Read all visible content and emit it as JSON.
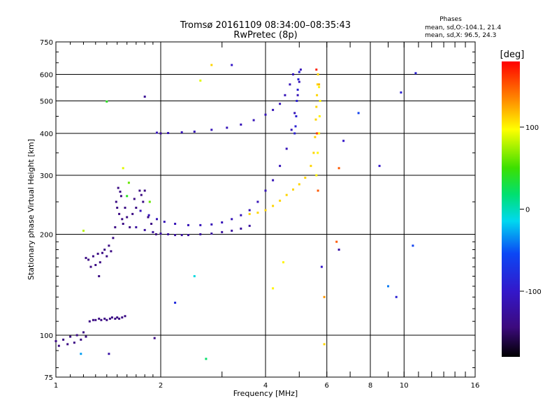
{
  "chart_data": {
    "type": "scatter",
    "title": "Tromsø 20161109 08:34:00–08:35:43",
    "subtitle": "RwPretec (8p)",
    "xlabel": "Frequency [MHz]",
    "ylabel": "Stationary phase Virtual Height [km]",
    "x_scale": "log",
    "y_scale": "log",
    "xlim": [
      1,
      16
    ],
    "ylim": [
      75,
      750
    ],
    "grid": true,
    "x_ticks": [
      1,
      2,
      4,
      6,
      8,
      10,
      16
    ],
    "x_tick_labels": [
      "1",
      "2",
      "4",
      "6",
      "8",
      "10",
      "16"
    ],
    "y_ticks": [
      75,
      100,
      200,
      300,
      400,
      500,
      600,
      750
    ],
    "y_tick_labels": [
      "75",
      "100",
      "200",
      "300",
      "400",
      "500",
      "600",
      "750"
    ],
    "phase_stats": {
      "heading": "Phases",
      "o_line": "mean, sd,O:-104.1, 21.4",
      "x_line": "mean, sd,X: 96.5, 24.3"
    },
    "colorbar": {
      "label": "[deg]",
      "range": [
        -180,
        180
      ],
      "ticks": [
        100,
        0,
        -100
      ],
      "tick_labels": [
        "100",
        "0",
        "-100"
      ]
    },
    "series": [
      {
        "points": [
          [
            1.0,
            96,
            -140
          ],
          [
            1.02,
            93,
            -140
          ],
          [
            1.05,
            97,
            -140
          ],
          [
            1.08,
            94,
            -140
          ],
          [
            1.1,
            99,
            -140
          ],
          [
            1.13,
            95,
            -140
          ],
          [
            1.15,
            100,
            -140
          ],
          [
            1.18,
            97,
            -140
          ],
          [
            1.2,
            102,
            -140
          ],
          [
            1.22,
            99,
            -140
          ],
          [
            1.25,
            110,
            -140
          ],
          [
            1.28,
            111,
            -140
          ],
          [
            1.3,
            111,
            -140
          ],
          [
            1.33,
            112,
            -140
          ],
          [
            1.35,
            111,
            -140
          ],
          [
            1.38,
            112,
            -140
          ],
          [
            1.4,
            111,
            -140
          ],
          [
            1.43,
            112,
            -140
          ],
          [
            1.45,
            113,
            -140
          ],
          [
            1.48,
            112,
            -140
          ],
          [
            1.5,
            113,
            -140
          ],
          [
            1.52,
            112,
            -140
          ],
          [
            1.55,
            113,
            -140
          ],
          [
            1.58,
            114,
            -140
          ],
          [
            1.22,
            170,
            -140
          ],
          [
            1.24,
            168,
            -140
          ],
          [
            1.26,
            160,
            -140
          ],
          [
            1.28,
            172,
            -140
          ],
          [
            1.3,
            162,
            -140
          ],
          [
            1.32,
            175,
            -140
          ],
          [
            1.33,
            150,
            -140
          ],
          [
            1.34,
            165,
            -140
          ],
          [
            1.36,
            176,
            -140
          ],
          [
            1.38,
            180,
            -140
          ],
          [
            1.4,
            172,
            -140
          ],
          [
            1.42,
            185,
            -140
          ],
          [
            1.44,
            178,
            -140
          ],
          [
            1.46,
            195,
            -140
          ],
          [
            1.48,
            210,
            -140
          ],
          [
            1.49,
            250,
            -140
          ],
          [
            1.5,
            240,
            -140
          ],
          [
            1.51,
            275,
            -140
          ],
          [
            1.52,
            230,
            -140
          ],
          [
            1.53,
            268,
            -140
          ],
          [
            1.54,
            260,
            -140
          ],
          [
            1.55,
            222,
            -140
          ],
          [
            1.56,
            215,
            -140
          ],
          [
            1.58,
            240,
            -140
          ],
          [
            1.6,
            225,
            -140
          ],
          [
            1.63,
            210,
            -140
          ],
          [
            1.66,
            230,
            -140
          ],
          [
            1.68,
            255,
            -140
          ],
          [
            1.7,
            240,
            -140
          ],
          [
            1.74,
            270,
            -140
          ],
          [
            1.76,
            262,
            -140
          ],
          [
            1.78,
            250,
            -140
          ],
          [
            1.8,
            270,
            -140
          ],
          [
            1.84,
            225,
            -140
          ],
          [
            1.88,
            215,
            -140
          ],
          [
            1.94,
            200,
            -140
          ],
          [
            1.7,
            210,
            -125
          ],
          [
            1.8,
            206,
            -125
          ],
          [
            1.9,
            203,
            -125
          ],
          [
            2.0,
            201,
            -125
          ],
          [
            2.1,
            200,
            -125
          ],
          [
            2.2,
            199,
            -125
          ],
          [
            2.3,
            199,
            -125
          ],
          [
            2.4,
            199,
            -125
          ],
          [
            2.6,
            200,
            -125
          ],
          [
            2.8,
            201,
            -125
          ],
          [
            3.0,
            203,
            -125
          ],
          [
            3.2,
            205,
            -125
          ],
          [
            3.4,
            208,
            -125
          ],
          [
            3.6,
            212,
            -125
          ],
          [
            1.75,
            235,
            -110
          ],
          [
            1.85,
            228,
            -110
          ],
          [
            1.95,
            222,
            -110
          ],
          [
            2.05,
            218,
            -110
          ],
          [
            2.2,
            215,
            -110
          ],
          [
            2.4,
            213,
            -110
          ],
          [
            2.6,
            213,
            -110
          ],
          [
            2.8,
            214,
            -110
          ],
          [
            3.0,
            217,
            -110
          ],
          [
            3.2,
            222,
            -110
          ],
          [
            3.4,
            228,
            -110
          ],
          [
            3.6,
            236,
            -110
          ],
          [
            3.8,
            250,
            -110
          ],
          [
            4.0,
            270,
            -110
          ],
          [
            4.2,
            290,
            -110
          ],
          [
            4.4,
            320,
            -110
          ],
          [
            4.6,
            360,
            -110
          ],
          [
            4.75,
            410,
            -110
          ],
          [
            4.85,
            460,
            -110
          ],
          [
            4.95,
            520,
            -110
          ],
          [
            5.0,
            570,
            -110
          ],
          [
            5.05,
            620,
            -110
          ],
          [
            1.95,
            402,
            -110
          ],
          [
            2.1,
            401,
            -110
          ],
          [
            2.3,
            403,
            -110
          ],
          [
            2.5,
            405,
            -110
          ],
          [
            2.8,
            410,
            -110
          ],
          [
            3.1,
            416,
            -110
          ],
          [
            3.4,
            425,
            -110
          ],
          [
            3.7,
            438,
            -110
          ],
          [
            4.0,
            455,
            -110
          ],
          [
            4.2,
            470,
            -110
          ],
          [
            4.4,
            490,
            -110
          ],
          [
            4.55,
            520,
            -110
          ],
          [
            4.7,
            560,
            -110
          ],
          [
            4.8,
            600,
            -110
          ],
          [
            4.85,
            400,
            -90
          ],
          [
            4.88,
            420,
            -90
          ],
          [
            4.9,
            450,
            -90
          ],
          [
            4.92,
            500,
            -90
          ],
          [
            4.95,
            540,
            -90
          ],
          [
            4.97,
            580,
            -90
          ],
          [
            5.0,
            610,
            -90
          ],
          [
            3.6,
            230,
            110
          ],
          [
            3.8,
            232,
            110
          ],
          [
            4.0,
            236,
            110
          ],
          [
            4.2,
            243,
            110
          ],
          [
            4.4,
            252,
            110
          ],
          [
            4.6,
            262,
            110
          ],
          [
            4.8,
            272,
            110
          ],
          [
            5.0,
            282,
            110
          ],
          [
            5.2,
            295,
            110
          ],
          [
            5.4,
            320,
            110
          ],
          [
            5.5,
            350,
            110
          ],
          [
            5.55,
            390,
            110
          ],
          [
            5.58,
            440,
            110
          ],
          [
            5.6,
            480,
            110
          ],
          [
            5.62,
            520,
            110
          ],
          [
            5.64,
            560,
            110
          ],
          [
            5.66,
            600,
            110
          ],
          [
            5.6,
            300,
            100
          ],
          [
            5.65,
            350,
            100
          ],
          [
            5.7,
            400,
            100
          ],
          [
            5.72,
            450,
            100
          ],
          [
            5.74,
            500,
            100
          ],
          [
            5.7,
            550,
            100
          ],
          [
            5.6,
            620,
            170
          ],
          [
            5.62,
            400,
            160
          ],
          [
            5.66,
            270,
            150
          ],
          [
            5.7,
            560,
            120
          ],
          [
            1.2,
            205,
            80
          ],
          [
            1.4,
            498,
            40
          ],
          [
            2.8,
            640,
            110
          ],
          [
            3.2,
            640,
            -100
          ],
          [
            2.6,
            575,
            90
          ],
          [
            7.4,
            460,
            -60
          ],
          [
            8.5,
            320,
            -100
          ],
          [
            9.8,
            530,
            -90
          ],
          [
            10.8,
            605,
            -90
          ],
          [
            10.6,
            185,
            -60
          ],
          [
            9.0,
            140,
            -40
          ],
          [
            9.5,
            130,
            -90
          ],
          [
            6.5,
            315,
            150
          ],
          [
            6.5,
            180,
            -120
          ],
          [
            5.8,
            160,
            -100
          ],
          [
            5.9,
            130,
            130
          ],
          [
            4.2,
            138,
            100
          ],
          [
            4.5,
            165,
            100
          ],
          [
            2.5,
            150,
            -10
          ],
          [
            2.7,
            85,
            20
          ],
          [
            1.18,
            88,
            -30
          ],
          [
            1.42,
            88,
            -120
          ],
          [
            1.92,
            98,
            -140
          ],
          [
            2.2,
            125,
            -80
          ],
          [
            1.6,
            260,
            40
          ],
          [
            1.62,
            285,
            60
          ],
          [
            1.86,
            250,
            60
          ],
          [
            1.8,
            515,
            -130
          ],
          [
            2.0,
            400,
            -130
          ],
          [
            5.9,
            94,
            110
          ],
          [
            6.4,
            190,
            150
          ],
          [
            6.7,
            380,
            -100
          ],
          [
            1.56,
            315,
            90
          ]
        ]
      }
    ]
  }
}
